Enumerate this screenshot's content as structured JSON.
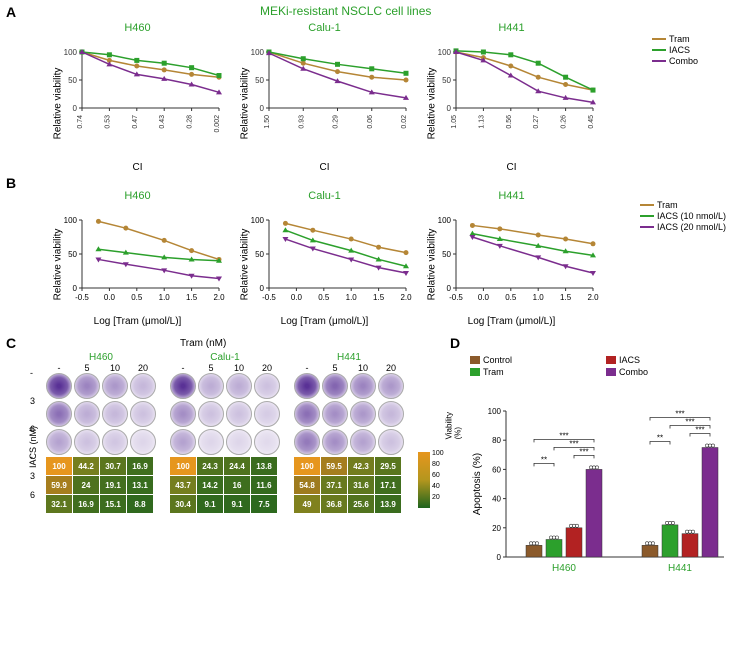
{
  "colors": {
    "tram": "#b58636",
    "iacs": "#2ca02c",
    "combo": "#7b2d8e",
    "control": "#8b5a2b",
    "iacs_red": "#b22222",
    "background": "#ffffff",
    "grid": "#e0e0e0",
    "axis": "#333333",
    "title_green": "#2ca02c"
  },
  "section_title": "MEKi-resistant NSCLC cell lines",
  "panelA": {
    "ylabel": "Relative viability",
    "xlabel": "CI",
    "ylim": [
      0,
      100
    ],
    "ytick_step": 50,
    "legend": [
      "Tram",
      "IACS",
      "Combo"
    ],
    "legend_colors": [
      "#b58636",
      "#2ca02c",
      "#7b2d8e"
    ],
    "charts": [
      {
        "title": "H460",
        "xticks": [
          "0.74",
          "0.53",
          "0.47",
          "0.43",
          "0.28",
          "0.002"
        ],
        "tram": [
          100,
          85,
          75,
          68,
          60,
          55
        ],
        "iacs": [
          100,
          95,
          85,
          80,
          72,
          58
        ],
        "combo": [
          100,
          78,
          60,
          52,
          42,
          28
        ]
      },
      {
        "title": "Calu-1",
        "xticks": [
          "1.50",
          "0.93",
          "0.29",
          "0.06",
          "0.02"
        ],
        "tram": [
          100,
          80,
          65,
          55,
          50
        ],
        "iacs": [
          100,
          88,
          78,
          70,
          62
        ],
        "combo": [
          98,
          70,
          48,
          28,
          18
        ]
      },
      {
        "title": "H441",
        "xticks": [
          "1.05",
          "1.13",
          "0.56",
          "0.27",
          "0.26",
          "0.45"
        ],
        "tram": [
          100,
          90,
          75,
          55,
          42,
          32
        ],
        "iacs": [
          102,
          100,
          95,
          80,
          55,
          32
        ],
        "combo": [
          100,
          85,
          58,
          30,
          18,
          10
        ]
      }
    ]
  },
  "panelB": {
    "ylabel": "Relative viability",
    "xlabel": "Log [Tram (μmol/L)]",
    "ylim": [
      0,
      100
    ],
    "xlim": [
      -0.5,
      2.0
    ],
    "xticks": [
      -0.5,
      0.0,
      0.5,
      1.0,
      1.5,
      2.0
    ],
    "legend": [
      "Tram",
      "IACS (10 nmol/L)",
      "IACS (20 nmol/L)"
    ],
    "legend_colors": [
      "#b58636",
      "#2ca02c",
      "#7b2d8e"
    ],
    "charts": [
      {
        "title": "H460",
        "tram": [
          [
            -0.2,
            98
          ],
          [
            0.3,
            88
          ],
          [
            1.0,
            70
          ],
          [
            1.5,
            55
          ],
          [
            2.0,
            42
          ]
        ],
        "iacs10": [
          [
            -0.2,
            57
          ],
          [
            0.3,
            52
          ],
          [
            1.0,
            45
          ],
          [
            1.5,
            42
          ],
          [
            2.0,
            40
          ]
        ],
        "iacs20": [
          [
            -0.2,
            42
          ],
          [
            0.3,
            35
          ],
          [
            1.0,
            26
          ],
          [
            1.5,
            18
          ],
          [
            2.0,
            14
          ]
        ]
      },
      {
        "title": "Calu-1",
        "tram": [
          [
            -0.2,
            95
          ],
          [
            0.3,
            85
          ],
          [
            1.0,
            72
          ],
          [
            1.5,
            60
          ],
          [
            2.0,
            52
          ]
        ],
        "iacs10": [
          [
            -0.2,
            85
          ],
          [
            0.3,
            70
          ],
          [
            1.0,
            55
          ],
          [
            1.5,
            42
          ],
          [
            2.0,
            32
          ]
        ],
        "iacs20": [
          [
            -0.2,
            72
          ],
          [
            0.3,
            58
          ],
          [
            1.0,
            42
          ],
          [
            1.5,
            30
          ],
          [
            2.0,
            22
          ]
        ]
      },
      {
        "title": "H441",
        "tram": [
          [
            -0.2,
            92
          ],
          [
            0.3,
            87
          ],
          [
            1.0,
            78
          ],
          [
            1.5,
            72
          ],
          [
            2.0,
            65
          ]
        ],
        "iacs10": [
          [
            -0.2,
            80
          ],
          [
            0.3,
            72
          ],
          [
            1.0,
            62
          ],
          [
            1.5,
            54
          ],
          [
            2.0,
            48
          ]
        ],
        "iacs20": [
          [
            -0.2,
            75
          ],
          [
            0.3,
            62
          ],
          [
            1.0,
            45
          ],
          [
            1.5,
            32
          ],
          [
            2.0,
            22
          ]
        ]
      }
    ]
  },
  "panelC": {
    "top_label": "Tram (nM)",
    "side_label": "IACS (nM)",
    "col_headers": [
      "-",
      "5",
      "10",
      "20"
    ],
    "row_headers": [
      "-",
      "3",
      "6"
    ],
    "viability_label": "Viability (%)",
    "colorbar": {
      "min": 20,
      "max": 100,
      "ticks": [
        20,
        40,
        60,
        80,
        100
      ]
    },
    "cell_lines": [
      "H460",
      "Calu-1",
      "H441"
    ],
    "heatmaps": [
      [
        [
          100,
          44.2,
          30.7,
          16.9
        ],
        [
          59.9,
          24.0,
          19.1,
          13.1
        ],
        [
          32.1,
          16.9,
          15.1,
          8.8
        ]
      ],
      [
        [
          100,
          24.3,
          24.4,
          13.8
        ],
        [
          43.7,
          14.2,
          16.0,
          11.6
        ],
        [
          30.4,
          9.1,
          9.1,
          7.5
        ]
      ],
      [
        [
          100,
          59.5,
          42.3,
          29.5
        ],
        [
          54.8,
          37.1,
          31.6,
          17.1
        ],
        [
          49.0,
          36.8,
          25.6,
          13.9
        ]
      ]
    ],
    "well_intensity": [
      [
        [
          1.0,
          0.6,
          0.5,
          0.35
        ],
        [
          0.7,
          0.4,
          0.35,
          0.3
        ],
        [
          0.45,
          0.3,
          0.28,
          0.2
        ]
      ],
      [
        [
          1.0,
          0.4,
          0.4,
          0.3
        ],
        [
          0.55,
          0.3,
          0.3,
          0.25
        ],
        [
          0.45,
          0.2,
          0.2,
          0.18
        ]
      ],
      [
        [
          1.0,
          0.75,
          0.6,
          0.5
        ],
        [
          0.7,
          0.55,
          0.5,
          0.35
        ],
        [
          0.65,
          0.55,
          0.45,
          0.3
        ]
      ]
    ]
  },
  "panelD": {
    "ylabel": "Apoptosis (%)",
    "ylim": [
      0,
      100
    ],
    "ytick_step": 20,
    "legend": [
      "Control",
      "IACS",
      "Tram",
      "Combo"
    ],
    "legend_colors": [
      "#8b5a2b",
      "#b22222",
      "#2ca02c",
      "#7b2d8e"
    ],
    "groups": [
      "H460",
      "H441"
    ],
    "values": {
      "H460": {
        "Control": 8,
        "Tram": 12,
        "IACS": 20,
        "Combo": 60
      },
      "H441": {
        "Control": 8,
        "Tram": 22,
        "IACS": 16,
        "Combo": 75
      }
    },
    "sig": "***",
    "sig2": "**"
  }
}
